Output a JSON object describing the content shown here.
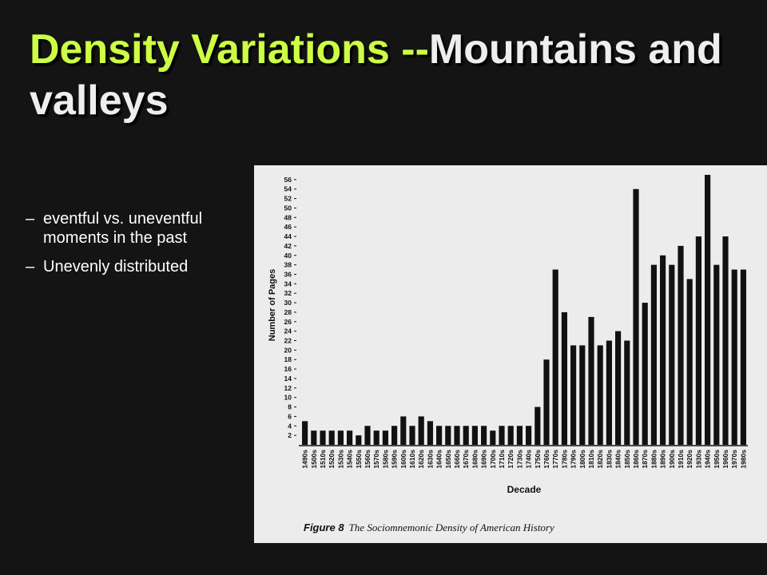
{
  "slide": {
    "title": {
      "highlight": "Density Variations --",
      "rest": "Mountains and valleys"
    },
    "bullets": [
      {
        "marker": "–",
        "text": "eventful vs. uneventful moments in the past"
      },
      {
        "marker": "–",
        "text": "Unevenly distributed"
      }
    ]
  },
  "chart_data": {
    "type": "bar",
    "categories": [
      "1490s",
      "1500s",
      "1510s",
      "1520s",
      "1530s",
      "1540s",
      "1550s",
      "1560s",
      "1570s",
      "1580s",
      "1590s",
      "1600s",
      "1610s",
      "1620s",
      "1630s",
      "1640s",
      "1650s",
      "1660s",
      "1670s",
      "1680s",
      "1690s",
      "1700s",
      "1710s",
      "1720s",
      "1730s",
      "1740s",
      "1750s",
      "1760s",
      "1770s",
      "1780s",
      "1790s",
      "1800s",
      "1810s",
      "1820s",
      "1830s",
      "1840s",
      "1850s",
      "1860s",
      "1870s",
      "1880s",
      "1890s",
      "1900s",
      "1910s",
      "1920s",
      "1930s",
      "1940s",
      "1950s",
      "1960s",
      "1970s",
      "1980s"
    ],
    "values": [
      5,
      3,
      3,
      3,
      3,
      3,
      2,
      4,
      3,
      3,
      4,
      6,
      4,
      6,
      5,
      4,
      4,
      4,
      4,
      4,
      4,
      3,
      4,
      4,
      4,
      4,
      8,
      18,
      37,
      28,
      21,
      21,
      27,
      21,
      22,
      24,
      22,
      54,
      30,
      38,
      40,
      38,
      42,
      35,
      44,
      57,
      38,
      44,
      37,
      37
    ],
    "color": "#111111",
    "ylim": [
      0,
      58
    ],
    "yticks": [
      2,
      4,
      6,
      8,
      10,
      12,
      14,
      16,
      18,
      20,
      22,
      24,
      26,
      28,
      30,
      32,
      34,
      36,
      38,
      40,
      42,
      44,
      46,
      48,
      50,
      52,
      54,
      56
    ],
    "y_label": "Number of Pages",
    "x_label": "Decade",
    "caption": {
      "label": "Figure 8",
      "text": "The Sociomnemonic Density of American History"
    }
  }
}
